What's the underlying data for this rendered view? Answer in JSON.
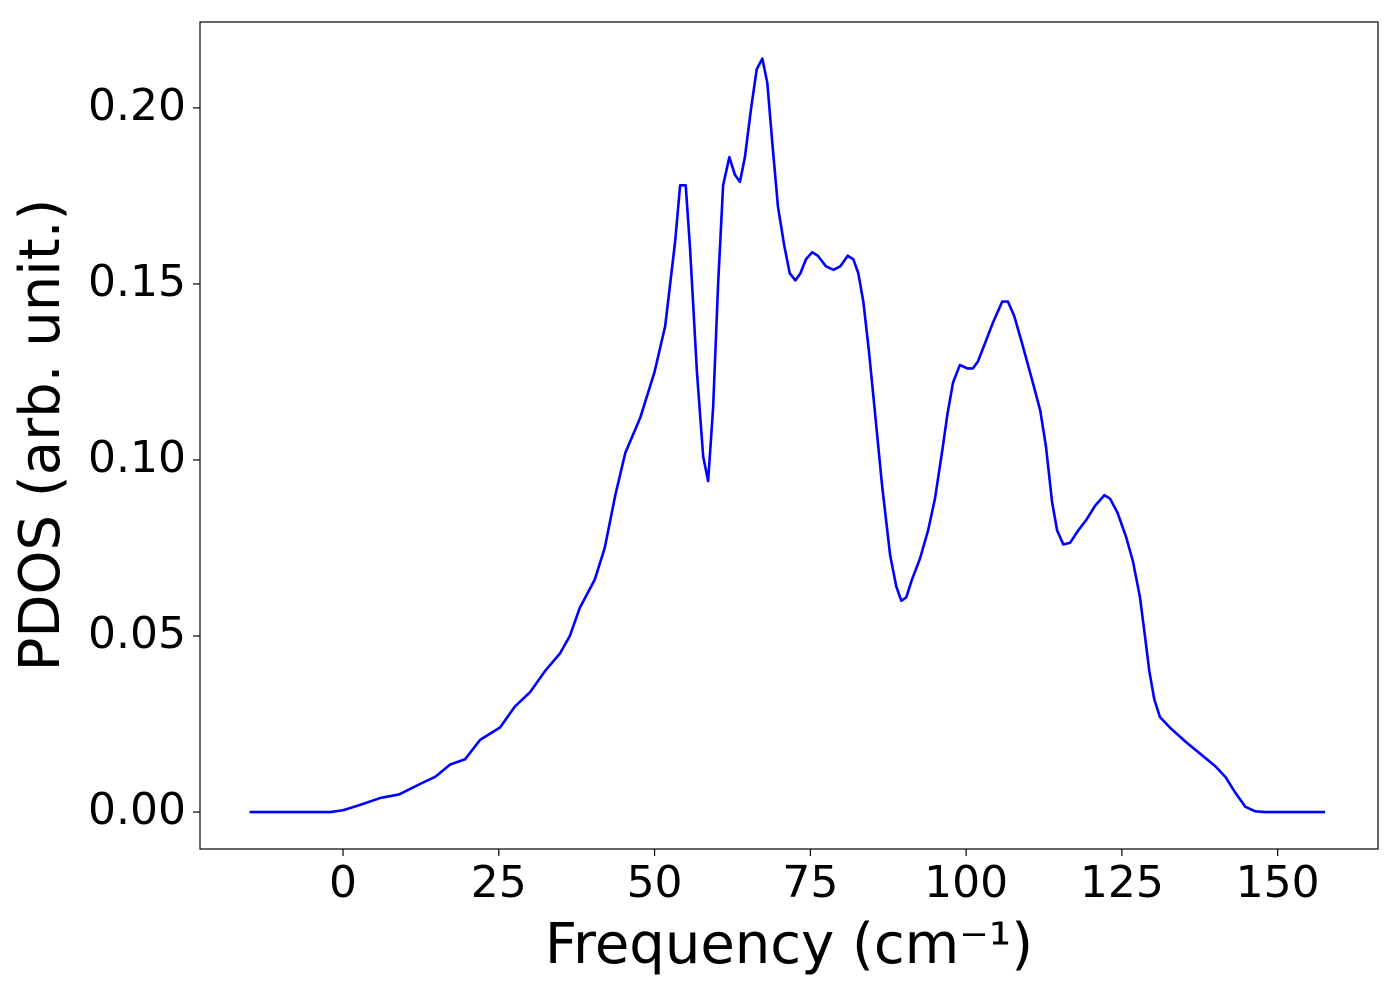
{
  "chart_data": {
    "type": "line",
    "xlabel": "Frequency (cm⁻¹)",
    "ylabel": "PDOS (arb. unit.)",
    "color": "#0000ff",
    "x": [
      -15,
      -10,
      -5,
      -2,
      0,
      2.7,
      6,
      9,
      12.4,
      14.8,
      17.2,
      19.6,
      22,
      25.2,
      27.6,
      30,
      32.4,
      34.8,
      36.4,
      38,
      40.4,
      42,
      43.7,
      45.3,
      47.7,
      50,
      51.7,
      53.3,
      54.1,
      55,
      55.7,
      56.8,
      57.8,
      58.6,
      59.4,
      60.2,
      61,
      62,
      62.9,
      63.7,
      64.5,
      65.5,
      66.4,
      67.3,
      68.1,
      68.9,
      69.8,
      70.8,
      71.7,
      72.6,
      73.4,
      74.3,
      75.3,
      76.2,
      77.5,
      78.7,
      79.8,
      81,
      81.9,
      82.7,
      83.5,
      84.4,
      85.4,
      86.5,
      87.8,
      88.8,
      89.6,
      90.4,
      91.3,
      92.6,
      93.9,
      95,
      96.2,
      97,
      97.9,
      99,
      100.2,
      101.1,
      101.9,
      103,
      104.3,
      105.8,
      106.7,
      107.7,
      109,
      110.7,
      111.9,
      112.8,
      113.8,
      114.6,
      115.6,
      116.7,
      118,
      119.3,
      120.7,
      122.2,
      123.1,
      124.3,
      125.7,
      126.8,
      127.9,
      128.7,
      129.4,
      130.2,
      131.1,
      132.7,
      135.2,
      137.6,
      140,
      141.6,
      143.2,
      144.8,
      146.4,
      148,
      152,
      157.6
    ],
    "values": [
      0,
      0,
      0,
      0,
      0.0005,
      0.002,
      0.004,
      0.005,
      0.008,
      0.01,
      0.0135,
      0.015,
      0.0205,
      0.024,
      0.03,
      0.034,
      0.04,
      0.045,
      0.05,
      0.058,
      0.066,
      0.075,
      0.09,
      0.102,
      0.112,
      0.125,
      0.138,
      0.162,
      0.178,
      0.178,
      0.16,
      0.125,
      0.101,
      0.094,
      0.115,
      0.15,
      0.178,
      0.186,
      0.181,
      0.179,
      0.186,
      0.2,
      0.211,
      0.214,
      0.207,
      0.19,
      0.172,
      0.161,
      0.153,
      0.151,
      0.153,
      0.157,
      0.159,
      0.158,
      0.155,
      0.154,
      0.155,
      0.158,
      0.157,
      0.153,
      0.145,
      0.131,
      0.113,
      0.093,
      0.073,
      0.064,
      0.06,
      0.061,
      0.066,
      0.072,
      0.08,
      0.089,
      0.103,
      0.113,
      0.122,
      0.127,
      0.126,
      0.126,
      0.128,
      0.133,
      0.139,
      0.145,
      0.145,
      0.141,
      0.133,
      0.122,
      0.114,
      0.104,
      0.088,
      0.08,
      0.076,
      0.0765,
      0.08,
      0.083,
      0.087,
      0.09,
      0.089,
      0.085,
      0.078,
      0.071,
      0.061,
      0.05,
      0.04,
      0.032,
      0.027,
      0.024,
      0.02,
      0.0165,
      0.013,
      0.01,
      0.0055,
      0.0015,
      0.0002,
      0,
      0,
      0
    ],
    "xlim": [
      -22.95,
      166.1
    ],
    "xticks": [
      0,
      25,
      50,
      75,
      100,
      125,
      150
    ],
    "ylim": [
      -0.0105,
      0.2244
    ],
    "yticks": [
      {
        "value": 0,
        "label": "0.00"
      },
      {
        "value": 0.05,
        "label": "0.05"
      },
      {
        "value": 0.1,
        "label": "0.10"
      },
      {
        "value": 0.15,
        "label": "0.15"
      },
      {
        "value": 0.2,
        "label": "0.20"
      }
    ],
    "grid": false
  }
}
